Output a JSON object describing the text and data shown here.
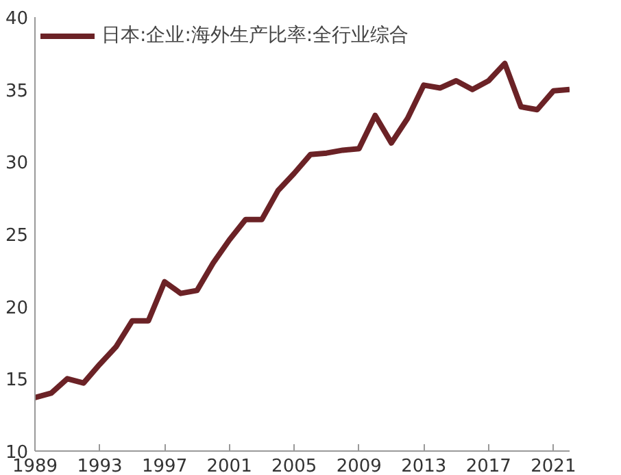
{
  "chart_data": {
    "type": "line",
    "x": [
      1989,
      1990,
      1991,
      1992,
      1993,
      1994,
      1995,
      1996,
      1997,
      1998,
      1999,
      2000,
      2001,
      2002,
      2003,
      2004,
      2005,
      2006,
      2007,
      2008,
      2009,
      2010,
      2011,
      2012,
      2013,
      2014,
      2015,
      2016,
      2017,
      2018,
      2019,
      2020,
      2021,
      2022
    ],
    "series": [
      {
        "name": "日本:企业:海外生产比率:全行业综合",
        "color": "#6b2226",
        "values": [
          13.7,
          14.0,
          15.0,
          14.7,
          16.0,
          17.2,
          19.0,
          19.0,
          21.7,
          20.9,
          21.1,
          23.0,
          24.6,
          26.0,
          26.0,
          28.0,
          29.2,
          30.5,
          30.6,
          30.8,
          30.9,
          33.2,
          31.3,
          33.0,
          35.3,
          35.1,
          35.6,
          35.0,
          35.6,
          36.8,
          33.8,
          33.6,
          34.9,
          35.0
        ]
      }
    ],
    "xlim": [
      1989,
      2022
    ],
    "xticks": [
      1989,
      1993,
      1997,
      2001,
      2005,
      2009,
      2013,
      2017,
      2021
    ],
    "ylim": [
      10,
      40
    ],
    "yticks": [
      10,
      15,
      20,
      25,
      30,
      35,
      40
    ],
    "grid": false,
    "legend": "top left",
    "marker": "none",
    "line_style": "solid"
  }
}
